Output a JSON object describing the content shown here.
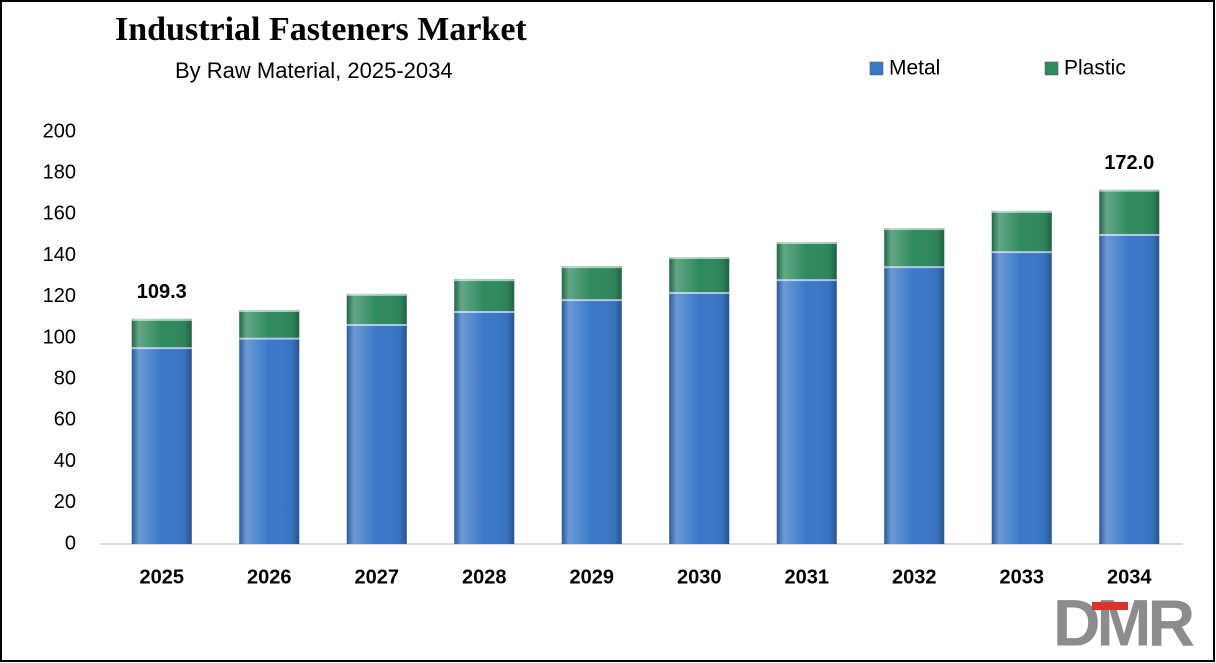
{
  "chart_data": {
    "type": "stacked_bar",
    "title": "Industrial Fasteners Market",
    "subtitle": "By Raw Material, 2025-2034",
    "categories": [
      "2025",
      "2026",
      "2027",
      "2028",
      "2029",
      "2030",
      "2031",
      "2032",
      "2033",
      "2034"
    ],
    "series": [
      {
        "name": "Metal",
        "color": "#3a78c8",
        "values": [
          95.6,
          100.2,
          106.8,
          113.1,
          118.9,
          122.3,
          128.6,
          134.9,
          142.2,
          150.5
        ]
      },
      {
        "name": "Plastic",
        "color": "#2f8a5e",
        "values": [
          13.7,
          13.4,
          14.6,
          15.5,
          16.0,
          17.0,
          18.0,
          18.5,
          19.5,
          21.5
        ]
      }
    ],
    "total_values": [
      109.3,
      null,
      null,
      null,
      null,
      null,
      null,
      null,
      null,
      172.0
    ],
    "total_labels": [
      "109.3",
      null,
      null,
      null,
      null,
      null,
      null,
      null,
      null,
      "172.0"
    ],
    "ylim": [
      0,
      200
    ],
    "yticks": [
      0,
      20,
      40,
      60,
      80,
      100,
      120,
      140,
      160,
      180,
      200
    ],
    "grid": false,
    "legend": "top-right",
    "logo": "DMR"
  }
}
